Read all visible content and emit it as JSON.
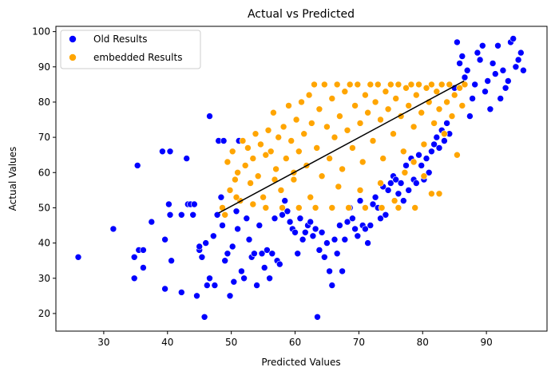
{
  "chart_data": {
    "type": "scatter",
    "title": "Actual vs Predicted",
    "xlabel": "Predicted Values",
    "ylabel": "Actual Values",
    "xlim": [
      22.5,
      99.5
    ],
    "ylim": [
      15,
      101.5
    ],
    "xticks": [
      30,
      40,
      50,
      60,
      70,
      80,
      90
    ],
    "yticks": [
      20,
      30,
      40,
      50,
      60,
      70,
      80,
      90,
      100
    ],
    "grid": false,
    "legend_position": "top-left",
    "series": [
      {
        "name": "Old Results",
        "color": "#0000ff",
        "points": [
          [
            26,
            36
          ],
          [
            31.5,
            44
          ],
          [
            34.8,
            30
          ],
          [
            34.8,
            36
          ],
          [
            35.3,
            62
          ],
          [
            35.5,
            38
          ],
          [
            36.2,
            38
          ],
          [
            36.2,
            33
          ],
          [
            37.5,
            46
          ],
          [
            39.2,
            66
          ],
          [
            39.6,
            41
          ],
          [
            39.6,
            27
          ],
          [
            40.2,
            51
          ],
          [
            40.4,
            66
          ],
          [
            40.4,
            48
          ],
          [
            40.6,
            35
          ],
          [
            42.2,
            26
          ],
          [
            42.2,
            48
          ],
          [
            43,
            64
          ],
          [
            43.2,
            51
          ],
          [
            43.6,
            51
          ],
          [
            44.2,
            51
          ],
          [
            44,
            48
          ],
          [
            44.6,
            25
          ],
          [
            45,
            38
          ],
          [
            45,
            39
          ],
          [
            45.4,
            36
          ],
          [
            45.8,
            19
          ],
          [
            46,
            40
          ],
          [
            46.2,
            28
          ],
          [
            46.6,
            76
          ],
          [
            46.6,
            30
          ],
          [
            47.2,
            42
          ],
          [
            47.4,
            28
          ],
          [
            47.8,
            48
          ],
          [
            48,
            69
          ],
          [
            48.4,
            53
          ],
          [
            48.6,
            45
          ],
          [
            48.8,
            69
          ],
          [
            49,
            35
          ],
          [
            49.4,
            37
          ],
          [
            49.8,
            25
          ],
          [
            50.2,
            39
          ],
          [
            50.4,
            29
          ],
          [
            50.8,
            49
          ],
          [
            51,
            44
          ],
          [
            51.2,
            69
          ],
          [
            51.6,
            32
          ],
          [
            52,
            30
          ],
          [
            52.4,
            47
          ],
          [
            52.8,
            41
          ],
          [
            53.2,
            36
          ],
          [
            53.6,
            37
          ],
          [
            54,
            28
          ],
          [
            54.4,
            45
          ],
          [
            54.8,
            37
          ],
          [
            55.2,
            33
          ],
          [
            55.6,
            38
          ],
          [
            56,
            30
          ],
          [
            56.4,
            37
          ],
          [
            56.8,
            47
          ],
          [
            57.2,
            35
          ],
          [
            57.6,
            34
          ],
          [
            58,
            48
          ],
          [
            58.4,
            52
          ],
          [
            58.8,
            49
          ],
          [
            59.2,
            46
          ],
          [
            59.6,
            44
          ],
          [
            60,
            43
          ],
          [
            60.4,
            37
          ],
          [
            60.8,
            47
          ],
          [
            61.2,
            41
          ],
          [
            61.6,
            43
          ],
          [
            62,
            45
          ],
          [
            62.4,
            46
          ],
          [
            62.8,
            42
          ],
          [
            63.2,
            44
          ],
          [
            63.5,
            19
          ],
          [
            63.8,
            38
          ],
          [
            64.2,
            43
          ],
          [
            64.6,
            36
          ],
          [
            65,
            40
          ],
          [
            65.4,
            32
          ],
          [
            65.8,
            28
          ],
          [
            66.2,
            41
          ],
          [
            66.6,
            37
          ],
          [
            67,
            45
          ],
          [
            67.4,
            32
          ],
          [
            67.8,
            41
          ],
          [
            68.2,
            46
          ],
          [
            68.6,
            50
          ],
          [
            69,
            47
          ],
          [
            69.4,
            44
          ],
          [
            69.8,
            42
          ],
          [
            70.2,
            52
          ],
          [
            70.6,
            45
          ],
          [
            71,
            44
          ],
          [
            71.4,
            40
          ],
          [
            71.8,
            45
          ],
          [
            72.2,
            51
          ],
          [
            72.6,
            53
          ],
          [
            73,
            50
          ],
          [
            73.4,
            47
          ],
          [
            73.8,
            56
          ],
          [
            74.2,
            48
          ],
          [
            74.6,
            55
          ],
          [
            75,
            57
          ],
          [
            75.4,
            59
          ],
          [
            75.8,
            58
          ],
          [
            76.2,
            54
          ],
          [
            76.6,
            57
          ],
          [
            77,
            52
          ],
          [
            77.4,
            62
          ],
          [
            77.8,
            55
          ],
          [
            78.2,
            64
          ],
          [
            78.6,
            58
          ],
          [
            79,
            57
          ],
          [
            79.4,
            65
          ],
          [
            79.8,
            62
          ],
          [
            80.2,
            58
          ],
          [
            80.6,
            64
          ],
          [
            81,
            60
          ],
          [
            81.4,
            66
          ],
          [
            81.8,
            68
          ],
          [
            82.2,
            70
          ],
          [
            82.6,
            67
          ],
          [
            83,
            72
          ],
          [
            83.4,
            69
          ],
          [
            83.8,
            74
          ],
          [
            84.2,
            71
          ],
          [
            84.6,
            76
          ],
          [
            85,
            84
          ],
          [
            85.4,
            97
          ],
          [
            85.8,
            91
          ],
          [
            86.2,
            93
          ],
          [
            86.6,
            87
          ],
          [
            87,
            89
          ],
          [
            87.4,
            76
          ],
          [
            87.8,
            81
          ],
          [
            88.2,
            85
          ],
          [
            88.6,
            94
          ],
          [
            89,
            92
          ],
          [
            89.4,
            96
          ],
          [
            89.8,
            83
          ],
          [
            90.2,
            86
          ],
          [
            90.6,
            78
          ],
          [
            91,
            91
          ],
          [
            91.4,
            88
          ],
          [
            91.8,
            96
          ],
          [
            92.2,
            81
          ],
          [
            92.6,
            89
          ],
          [
            93,
            84
          ],
          [
            93.4,
            86
          ],
          [
            93.8,
            97
          ],
          [
            94.2,
            98
          ],
          [
            94.6,
            90
          ],
          [
            95,
            92
          ],
          [
            95.4,
            94
          ],
          [
            95.8,
            89
          ]
        ]
      },
      {
        "name": "embedded Results",
        "color": "#ffa500",
        "points": [
          [
            48.6,
            50
          ],
          [
            49,
            48
          ],
          [
            49.4,
            63
          ],
          [
            49.8,
            55
          ],
          [
            50.2,
            66
          ],
          [
            50.6,
            58
          ],
          [
            51,
            60
          ],
          [
            51.4,
            52
          ],
          [
            51.8,
            69
          ],
          [
            52.2,
            62
          ],
          [
            52.6,
            67
          ],
          [
            53,
            57
          ],
          [
            53.4,
            64
          ],
          [
            53.8,
            71
          ],
          [
            54.2,
            59
          ],
          [
            54.6,
            68
          ],
          [
            55,
            53
          ],
          [
            55.4,
            65
          ],
          [
            55.8,
            72
          ],
          [
            56.2,
            66
          ],
          [
            56.6,
            77
          ],
          [
            57,
            61
          ],
          [
            57.4,
            70
          ],
          [
            57.8,
            55
          ],
          [
            58.2,
            73
          ],
          [
            58.6,
            64
          ],
          [
            59,
            79
          ],
          [
            59.4,
            69
          ],
          [
            59.8,
            58
          ],
          [
            60.2,
            75
          ],
          [
            60.6,
            66
          ],
          [
            61,
            80
          ],
          [
            61.4,
            71
          ],
          [
            61.8,
            62
          ],
          [
            62.2,
            82
          ],
          [
            62.6,
            74
          ],
          [
            63,
            85
          ],
          [
            63.4,
            67
          ],
          [
            63.8,
            78
          ],
          [
            64.2,
            59
          ],
          [
            64.6,
            85
          ],
          [
            65,
            73
          ],
          [
            65.4,
            64
          ],
          [
            65.8,
            81
          ],
          [
            66.2,
            70
          ],
          [
            66.6,
            85
          ],
          [
            67,
            76
          ],
          [
            67.4,
            61
          ],
          [
            67.8,
            83
          ],
          [
            68.2,
            72
          ],
          [
            68.6,
            85
          ],
          [
            69,
            67
          ],
          [
            69.4,
            79
          ],
          [
            69.8,
            85
          ],
          [
            70.2,
            74
          ],
          [
            70.6,
            63
          ],
          [
            71,
            82
          ],
          [
            71.4,
            77
          ],
          [
            71.8,
            85
          ],
          [
            72.2,
            69
          ],
          [
            72.6,
            80
          ],
          [
            73,
            85
          ],
          [
            73.4,
            75
          ],
          [
            73.8,
            64
          ],
          [
            74.2,
            83
          ],
          [
            74.6,
            78
          ],
          [
            75,
            85
          ],
          [
            75.4,
            71
          ],
          [
            75.8,
            81
          ],
          [
            76.2,
            85
          ],
          [
            76.6,
            76
          ],
          [
            77,
            66
          ],
          [
            77.4,
            84
          ],
          [
            77.8,
            79
          ],
          [
            78.2,
            85
          ],
          [
            78.6,
            73
          ],
          [
            79,
            82
          ],
          [
            79.4,
            85
          ],
          [
            79.8,
            77
          ],
          [
            80.2,
            68
          ],
          [
            80.6,
            84
          ],
          [
            81,
            80
          ],
          [
            81.4,
            85
          ],
          [
            81.8,
            74
          ],
          [
            82.2,
            83
          ],
          [
            82.6,
            78
          ],
          [
            83,
            85
          ],
          [
            83.4,
            71
          ],
          [
            83.8,
            80
          ],
          [
            84.2,
            85
          ],
          [
            84.6,
            76
          ],
          [
            85,
            82
          ],
          [
            85.4,
            65
          ],
          [
            85.8,
            84
          ],
          [
            86.2,
            79
          ],
          [
            86.6,
            85
          ],
          [
            55.4,
            50
          ],
          [
            58,
            50
          ],
          [
            60.6,
            50
          ],
          [
            63.2,
            50
          ],
          [
            65.8,
            50
          ],
          [
            68.4,
            50
          ],
          [
            71,
            50
          ],
          [
            73.6,
            50
          ],
          [
            76.2,
            50
          ],
          [
            78.8,
            50
          ],
          [
            81.4,
            54
          ],
          [
            82.6,
            54
          ],
          [
            80.2,
            59
          ],
          [
            78.6,
            63
          ],
          [
            77.2,
            60
          ],
          [
            73.4,
            57
          ],
          [
            75.6,
            52
          ],
          [
            70.2,
            55
          ],
          [
            66.8,
            56
          ],
          [
            62.4,
            53
          ],
          [
            59.8,
            60
          ],
          [
            56.8,
            58
          ],
          [
            53.4,
            51
          ],
          [
            50.8,
            53
          ]
        ]
      }
    ],
    "regression_line": {
      "color": "#000000",
      "start": [
        48,
        48.5
      ],
      "end": [
        86.5,
        86
      ]
    }
  }
}
